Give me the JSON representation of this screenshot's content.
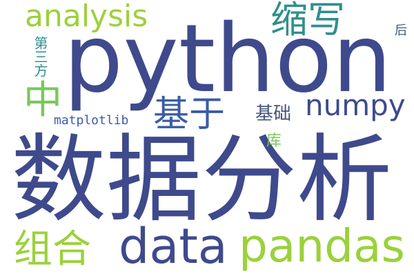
{
  "palette": {
    "navy": "#3f4a8c",
    "teal": "#2f8f8c",
    "blue": "#3b5ca6",
    "green": "#79c85a",
    "lime": "#9bd13b",
    "slate": "#44547a",
    "bg": "#ffffff"
  },
  "words": {
    "python": "python",
    "shujufenxi": "数据分析",
    "analysis": "analysis",
    "suoxie": "缩写",
    "zhong": "中",
    "disanfang": "第三方",
    "jiyu": "基于",
    "numpy": "numpy",
    "jichu": "基础",
    "hou": "后",
    "matplotlib": "matplotlib",
    "ku": "库",
    "zuhe": "组合",
    "data": "data",
    "pandas": "pandas"
  }
}
